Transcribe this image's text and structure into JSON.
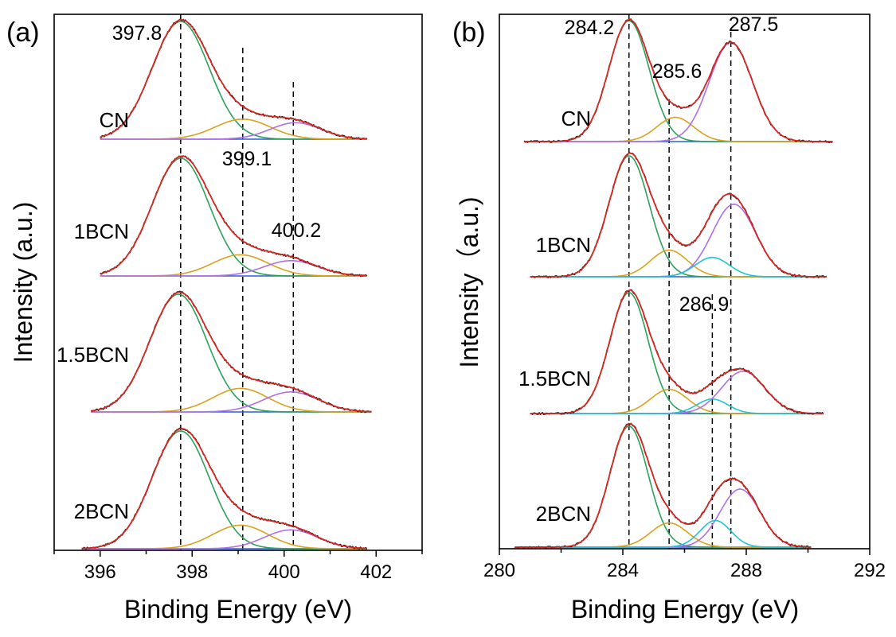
{
  "chart_data": [
    {
      "type": "line",
      "panel_label": "(a)",
      "xlabel": "Binding Energy (eV)",
      "ylabel": "Intensity (a.u.)",
      "xlim": [
        395,
        403
      ],
      "xticks": [
        396,
        398,
        400,
        402
      ],
      "ytick_labels": false,
      "grid": false,
      "legend": "none",
      "reference_lines_eV": [
        397.75,
        399.1,
        400.2
      ],
      "peak_labels": [
        {
          "text": "397.8",
          "x": 397.8
        },
        {
          "text": "399.1",
          "x": 399.1
        },
        {
          "text": "400.2",
          "x": 400.2
        }
      ],
      "colors": {
        "raw": "#1a1a1a",
        "envelope": "#e8231c",
        "peak1": "#2ca05a",
        "peak2": "#d9a21c",
        "peak3": "#b06fe6",
        "baseline": "#2b5fd9"
      },
      "series": [
        {
          "name": "CN",
          "x_range": [
            396.0,
            401.8
          ],
          "peaks": [
            {
              "center": 397.75,
              "height": 1.0,
              "sigma": 0.62
            },
            {
              "center": 399.1,
              "height": 0.17,
              "sigma": 0.6
            },
            {
              "center": 400.25,
              "height": 0.14,
              "sigma": 0.55
            }
          ]
        },
        {
          "name": "1BCN",
          "x_range": [
            396.0,
            401.8
          ],
          "peaks": [
            {
              "center": 397.75,
              "height": 1.0,
              "sigma": 0.62
            },
            {
              "center": 399.05,
              "height": 0.18,
              "sigma": 0.6
            },
            {
              "center": 400.15,
              "height": 0.13,
              "sigma": 0.58
            }
          ]
        },
        {
          "name": "1.5BCN",
          "x_range": [
            395.8,
            401.9
          ],
          "peaks": [
            {
              "center": 397.7,
              "height": 1.0,
              "sigma": 0.62
            },
            {
              "center": 399.05,
              "height": 0.2,
              "sigma": 0.6
            },
            {
              "center": 400.15,
              "height": 0.17,
              "sigma": 0.6
            }
          ]
        },
        {
          "name": "2BCN",
          "x_range": [
            395.6,
            401.8
          ],
          "peaks": [
            {
              "center": 397.75,
              "height": 1.0,
              "sigma": 0.62
            },
            {
              "center": 399.05,
              "height": 0.2,
              "sigma": 0.6
            },
            {
              "center": 400.15,
              "height": 0.16,
              "sigma": 0.58
            }
          ]
        }
      ]
    },
    {
      "type": "line",
      "panel_label": "(b)",
      "xlabel": "Binding Energy (eV)",
      "ylabel": "Intensity（a.u.)",
      "xlim": [
        280,
        292
      ],
      "xticks": [
        280,
        284,
        288,
        292
      ],
      "ytick_labels": false,
      "grid": false,
      "legend": "none",
      "reference_lines_eV": [
        284.2,
        285.5,
        286.9,
        287.5
      ],
      "peak_labels": [
        {
          "text": "284.2",
          "x": 284.2
        },
        {
          "text": "285.6",
          "x": 285.6
        },
        {
          "text": "286.9",
          "x": 286.9
        },
        {
          "text": "287.5",
          "x": 287.5
        }
      ],
      "colors": {
        "raw": "#1a1a1a",
        "envelope": "#e8231c",
        "peak1": "#2ca05a",
        "peak2": "#d9a21c",
        "peak3": "#b06fe6",
        "peak4": "#1fc4d6",
        "baseline": "#2b5fd9"
      },
      "series": [
        {
          "name": "CN",
          "x_range": [
            280.8,
            290.8
          ],
          "peaks": [
            {
              "center": 284.2,
              "height": 1.0,
              "sigma": 0.65
            },
            {
              "center": 285.7,
              "height": 0.2,
              "sigma": 0.6
            },
            {
              "center": 287.5,
              "height": 0.82,
              "sigma": 0.7
            }
          ]
        },
        {
          "name": "1BCN",
          "x_range": [
            281.0,
            290.6
          ],
          "peaks": [
            {
              "center": 284.2,
              "height": 1.0,
              "sigma": 0.65
            },
            {
              "center": 285.5,
              "height": 0.22,
              "sigma": 0.6
            },
            {
              "center": 287.6,
              "height": 0.6,
              "sigma": 0.7
            },
            {
              "center": 286.9,
              "height": 0.16,
              "sigma": 0.55
            }
          ]
        },
        {
          "name": "1.5BCN",
          "x_range": [
            281.0,
            290.5
          ],
          "peaks": [
            {
              "center": 284.2,
              "height": 1.0,
              "sigma": 0.62
            },
            {
              "center": 285.5,
              "height": 0.2,
              "sigma": 0.6
            },
            {
              "center": 287.9,
              "height": 0.35,
              "sigma": 0.7
            },
            {
              "center": 286.9,
              "height": 0.12,
              "sigma": 0.5
            }
          ]
        },
        {
          "name": "2BCN",
          "x_range": [
            280.5,
            290.1
          ],
          "peaks": [
            {
              "center": 284.2,
              "height": 1.0,
              "sigma": 0.62
            },
            {
              "center": 285.5,
              "height": 0.2,
              "sigma": 0.6
            },
            {
              "center": 287.8,
              "height": 0.48,
              "sigma": 0.65
            },
            {
              "center": 287.0,
              "height": 0.22,
              "sigma": 0.5
            }
          ]
        }
      ]
    }
  ]
}
